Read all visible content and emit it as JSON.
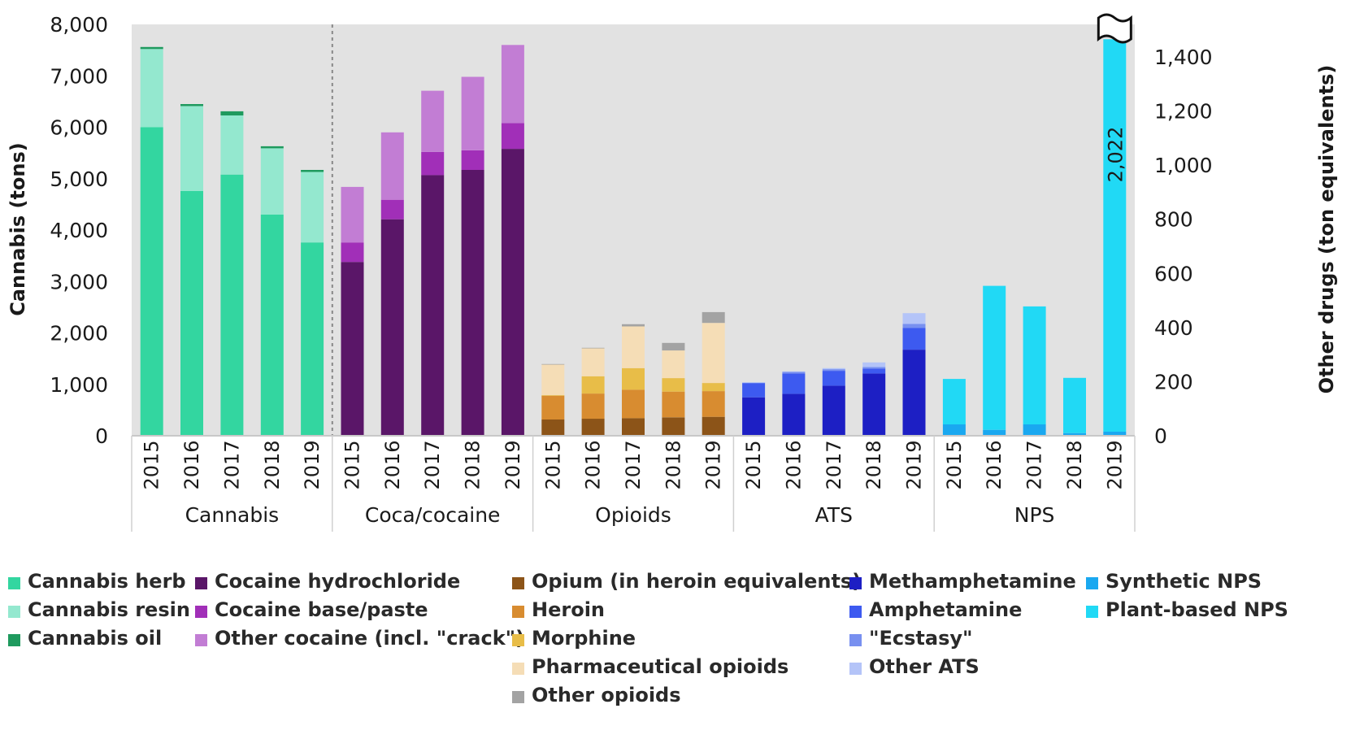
{
  "chart_data": {
    "type": "bar",
    "stacked": true,
    "y_left_label": "Cannabis (tons)",
    "y_right_label": "Other drugs (ton equivalents)",
    "y_left_ticks": [
      "0",
      "1,000",
      "2,000",
      "3,000",
      "4,000",
      "5,000",
      "6,000",
      "7,000",
      "8,000"
    ],
    "y_right_ticks": [
      "0",
      "200",
      "400",
      "600",
      "800",
      "1,000",
      "1,200",
      "1,400"
    ],
    "ylim_left": [
      0,
      8000
    ],
    "ylim_right": [
      0,
      1520
    ],
    "years": [
      "2015",
      "2016",
      "2017",
      "2018",
      "2019"
    ],
    "grid": false,
    "legend_placement": "bottom",
    "annotation": {
      "text": "2,022",
      "group": "NPS",
      "year": "2019",
      "note_break": true
    },
    "groups": [
      {
        "name": "Cannabis",
        "axis": "left",
        "series": [
          {
            "key": "cannabis_herb",
            "values": [
              6000,
              4760,
              5080,
              4300,
              3760
            ]
          },
          {
            "key": "cannabis_resin",
            "values": [
              1520,
              1650,
              1150,
              1290,
              1370
            ]
          },
          {
            "key": "cannabis_oil",
            "values": [
              40,
              40,
              80,
              40,
              40
            ]
          }
        ]
      },
      {
        "name": "Coca/cocaine",
        "axis": "left",
        "series": [
          {
            "key": "cocaine_hcl",
            "values": [
              3380,
              4210,
              5070,
              5170,
              5580
            ]
          },
          {
            "key": "cocaine_base",
            "values": [
              380,
              380,
              450,
              380,
              500
            ]
          },
          {
            "key": "cocaine_other",
            "values": [
              1080,
              1310,
              1190,
              1430,
              1520
            ]
          }
        ]
      },
      {
        "name": "Opioids",
        "axis": "right",
        "series": [
          {
            "key": "opium",
            "values": [
              60,
              63,
              65,
              68,
              70
            ]
          },
          {
            "key": "heroin",
            "values": [
              88,
              93,
              105,
              95,
              95
            ]
          },
          {
            "key": "morphine",
            "values": [
              2,
              64,
              80,
              50,
              30
            ]
          },
          {
            "key": "pharma_opioids",
            "values": [
              113,
              103,
              154,
              102,
              222
            ]
          },
          {
            "key": "other_opioids",
            "values": [
              2,
              2,
              8,
              28,
              40
            ]
          }
        ]
      },
      {
        "name": "ATS",
        "axis": "right",
        "series": [
          {
            "key": "meth",
            "values": [
              142,
              155,
              185,
              230,
              318
            ]
          },
          {
            "key": "amphetamine",
            "values": [
              52,
              75,
              55,
              18,
              80
            ]
          },
          {
            "key": "ecstasy",
            "values": [
              2,
              6,
              6,
              6,
              15
            ]
          },
          {
            "key": "other_ats",
            "values": [
              2,
              2,
              4,
              17,
              40
            ]
          }
        ]
      },
      {
        "name": "NPS",
        "axis": "right",
        "series": [
          {
            "key": "synthetic_nps",
            "values": [
              42,
              22,
              42,
              10,
              15
            ]
          },
          {
            "key": "plant_nps",
            "values": [
              168,
              532,
              436,
              204,
              1450
            ]
          }
        ]
      }
    ],
    "legend": [
      {
        "key": "cannabis_herb",
        "label": "Cannabis herb",
        "color": "#33d6a0"
      },
      {
        "key": "cannabis_resin",
        "label": "Cannabis resin",
        "color": "#94e8cf"
      },
      {
        "key": "cannabis_oil",
        "label": "Cannabis oil",
        "color": "#1f9a5e"
      },
      {
        "key": "cocaine_hcl",
        "label": "Cocaine hydrochloride",
        "color": "#5a1668"
      },
      {
        "key": "cocaine_base",
        "label": "Cocaine base/paste",
        "color": "#a12fb8"
      },
      {
        "key": "cocaine_other",
        "label": "Other cocaine (incl. \"crack\")",
        "color": "#c27dd4"
      },
      {
        "key": "opium",
        "label": "Opium (in heroin equivalents)",
        "color": "#8c5418"
      },
      {
        "key": "heroin",
        "label": "Heroin",
        "color": "#d88c30"
      },
      {
        "key": "morphine",
        "label": "Morphine",
        "color": "#e8bd48"
      },
      {
        "key": "pharma_opioids",
        "label": "Pharmaceutical opioids",
        "color": "#f5ddb6"
      },
      {
        "key": "other_opioids",
        "label": "Other opioids",
        "color": "#a3a3a3"
      },
      {
        "key": "meth",
        "label": "Methamphetamine",
        "color": "#1d1fc4"
      },
      {
        "key": "amphetamine",
        "label": "Amphetamine",
        "color": "#3d5af0"
      },
      {
        "key": "ecstasy",
        "label": "\"Ecstasy\"",
        "color": "#7890f0"
      },
      {
        "key": "other_ats",
        "label": "Other ATS",
        "color": "#b4c4f8"
      },
      {
        "key": "synthetic_nps",
        "label": "Synthetic NPS",
        "color": "#1aa8f0"
      },
      {
        "key": "plant_nps",
        "label": "Plant-based NPS",
        "color": "#21d9f5"
      }
    ],
    "colors": {
      "plot_background": "#e2e2e2"
    }
  }
}
